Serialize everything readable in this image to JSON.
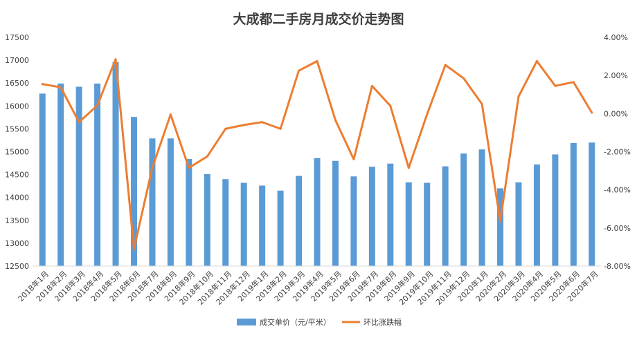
{
  "chart_data": {
    "type": "bar",
    "title": "大成都二手房月成交价走势图",
    "categories": [
      "2018年1月",
      "2018年2月",
      "2018年3月",
      "2018年4月",
      "2018年5月",
      "2018年6月",
      "2018年7月",
      "2018年8月",
      "2018年9月",
      "2018年10月",
      "2018年11月",
      "2018年12月",
      "2019年1月",
      "2019年2月",
      "2019年3月",
      "2019年4月",
      "2019年5月",
      "2019年6月",
      "2019年7月",
      "2019年8月",
      "2019年9月",
      "2019年10月",
      "2019年11月",
      "2019年12月",
      "2020年1月",
      "2020年2月",
      "2020年3月",
      "2020年4月",
      "2020年5月",
      "2020年6月",
      "2020年7月"
    ],
    "series": [
      {
        "name": "成交单价（元/平米）",
        "type": "bar",
        "axis": "left",
        "color": "#5b9bd5",
        "values": [
          16270,
          16490,
          16420,
          16490,
          16960,
          15760,
          15290,
          15290,
          14840,
          14510,
          14400,
          14320,
          14260,
          14150,
          14470,
          14860,
          14800,
          14460,
          14670,
          14740,
          14330,
          14320,
          14680,
          14960,
          15050,
          14200,
          14330,
          14720,
          14940,
          15190,
          15200
        ]
      },
      {
        "name": "环比涨跌幅",
        "type": "line",
        "axis": "right",
        "color": "#ed7d31",
        "values": [
          1.55,
          1.38,
          -0.45,
          0.42,
          2.85,
          -7.1,
          -2.85,
          -0.05,
          -2.85,
          -2.25,
          -0.8,
          -0.6,
          -0.45,
          -0.8,
          2.25,
          2.75,
          -0.35,
          -2.4,
          1.45,
          0.4,
          -2.85,
          -0.05,
          2.55,
          1.85,
          0.5,
          -5.65,
          0.9,
          2.75,
          1.45,
          1.65,
          0.05
        ]
      }
    ],
    "y_left": {
      "ylim": [
        12500,
        17500
      ],
      "ticks": [
        "12500",
        "13000",
        "13500",
        "14000",
        "14500",
        "15000",
        "15500",
        "16000",
        "16500",
        "17000",
        "17500"
      ]
    },
    "y_right": {
      "ylim": [
        -8,
        4
      ],
      "ticks": [
        "-8.00%",
        "-6.00%",
        "-4.00%",
        "-2.00%",
        "0.00%",
        "2.00%",
        "4.00%"
      ]
    },
    "grid": false,
    "legend": "bottom"
  }
}
